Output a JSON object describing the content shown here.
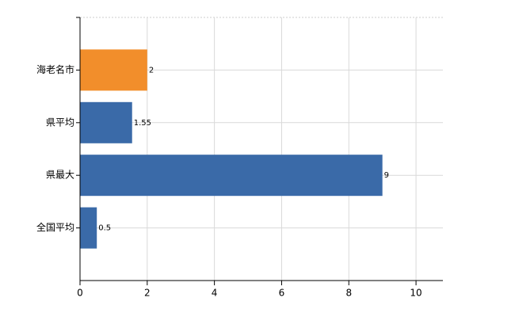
{
  "chart_data": {
    "type": "bar",
    "orientation": "horizontal",
    "categories": [
      "海老名市",
      "県平均",
      "県最大",
      "全国平均"
    ],
    "values": [
      2,
      1.55,
      9,
      0.5
    ],
    "colors": [
      "#f28e2b",
      "#3a6aa8",
      "#3a6aa8",
      "#3a6aa8"
    ],
    "xlim": [
      0,
      10.8
    ],
    "xticks": [
      0,
      2,
      4,
      6,
      8,
      10
    ],
    "grid": true
  }
}
